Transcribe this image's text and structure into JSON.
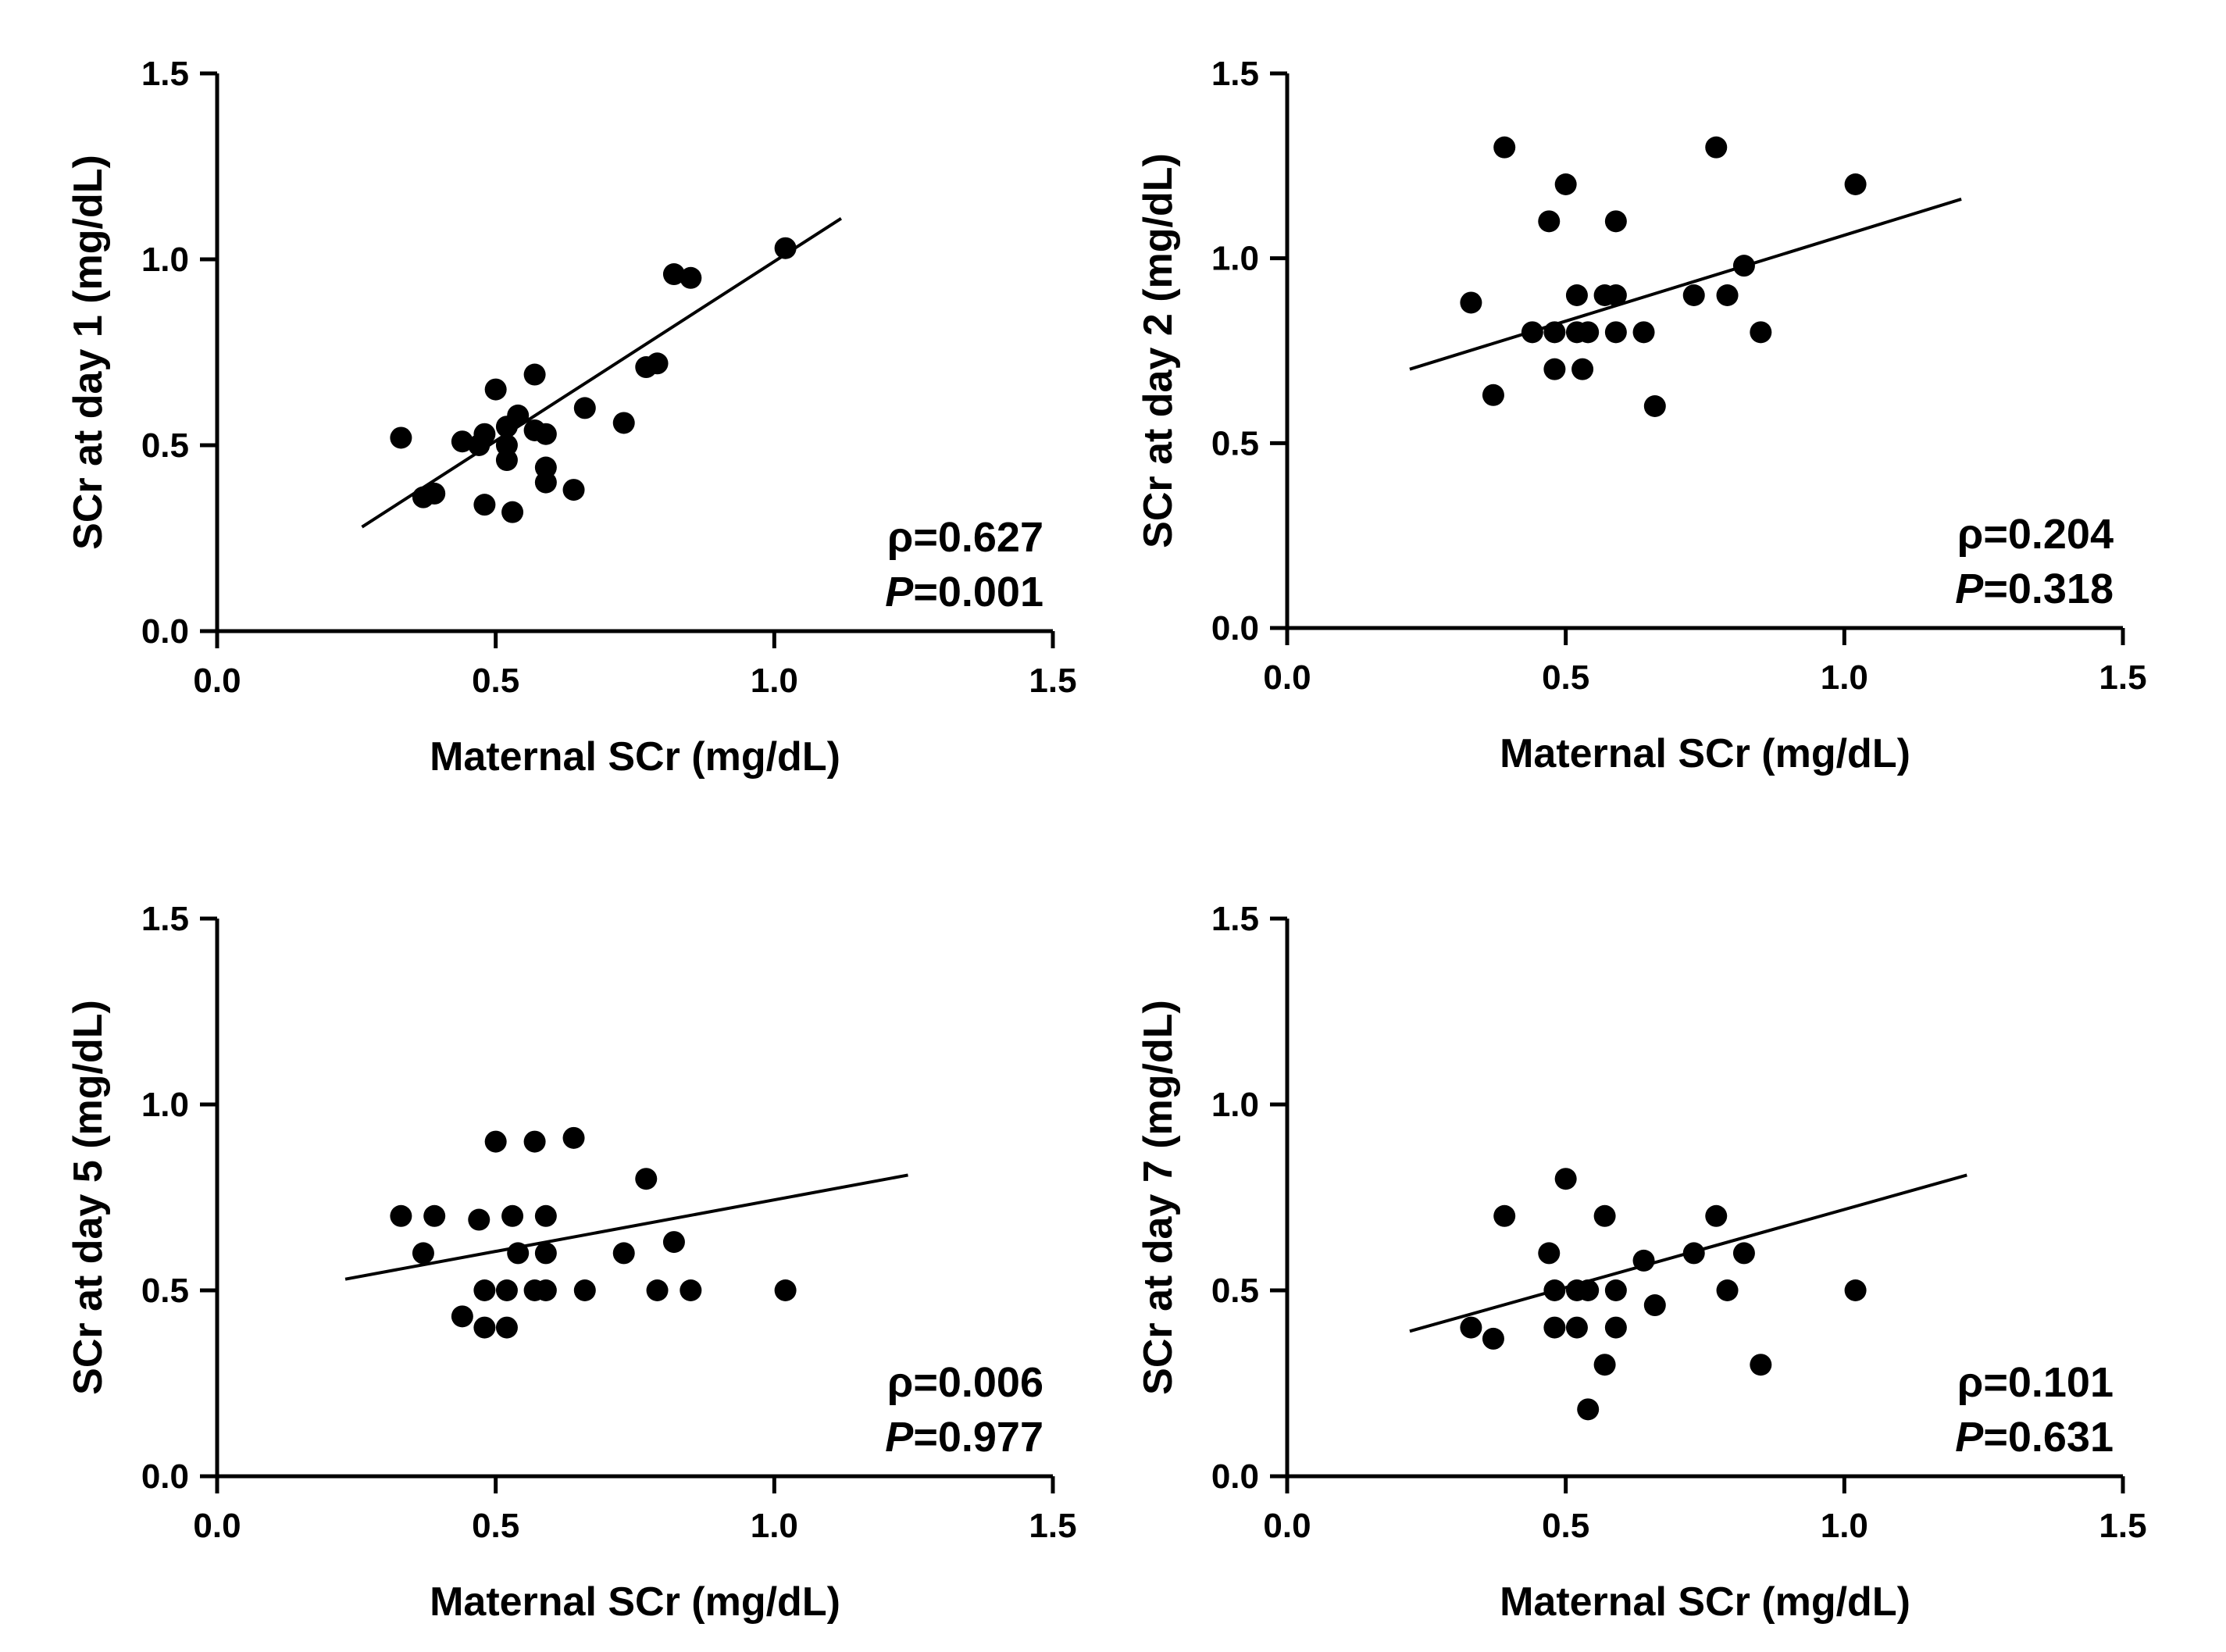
{
  "chart_data": [
    {
      "type": "scatter",
      "xlabel": "Maternal SCr (mg/dL)",
      "ylabel": "SCr at day 1 (mg/dL)",
      "xlim": [
        0,
        1.5
      ],
      "ylim": [
        0,
        1.5
      ],
      "ticks": [
        "0.0",
        "0.5",
        "1.0",
        "1.5"
      ],
      "rho_label": "ρ=0.627",
      "p_label": "P",
      "p_value": "=0.001",
      "fit": {
        "x": [
          0.26,
          1.12
        ],
        "y": [
          0.28,
          1.11
        ]
      },
      "points": [
        {
          "x": 0.33,
          "y": 0.52
        },
        {
          "x": 0.37,
          "y": 0.36
        },
        {
          "x": 0.39,
          "y": 0.37
        },
        {
          "x": 0.44,
          "y": 0.51
        },
        {
          "x": 0.47,
          "y": 0.5
        },
        {
          "x": 0.48,
          "y": 0.53
        },
        {
          "x": 0.48,
          "y": 0.34
        },
        {
          "x": 0.5,
          "y": 0.65
        },
        {
          "x": 0.52,
          "y": 0.5
        },
        {
          "x": 0.52,
          "y": 0.46
        },
        {
          "x": 0.52,
          "y": 0.55
        },
        {
          "x": 0.54,
          "y": 0.58
        },
        {
          "x": 0.53,
          "y": 0.32
        },
        {
          "x": 0.57,
          "y": 0.69
        },
        {
          "x": 0.57,
          "y": 0.54
        },
        {
          "x": 0.59,
          "y": 0.53
        },
        {
          "x": 0.59,
          "y": 0.44
        },
        {
          "x": 0.59,
          "y": 0.4
        },
        {
          "x": 0.64,
          "y": 0.38
        },
        {
          "x": 0.66,
          "y": 0.6
        },
        {
          "x": 0.73,
          "y": 0.56
        },
        {
          "x": 0.77,
          "y": 0.71
        },
        {
          "x": 0.79,
          "y": 0.72
        },
        {
          "x": 0.82,
          "y": 0.96
        },
        {
          "x": 0.85,
          "y": 0.95
        },
        {
          "x": 1.02,
          "y": 1.03
        }
      ]
    },
    {
      "type": "scatter",
      "xlabel": "Maternal SCr (mg/dL)",
      "ylabel": "SCr at day 2 (mg/dL)",
      "xlim": [
        0,
        1.5
      ],
      "ylim": [
        0,
        1.5
      ],
      "ticks": [
        "0.0",
        "0.5",
        "1.0",
        "1.5"
      ],
      "rho_label": "ρ=0.204",
      "p_label": "P",
      "p_value": "=0.318",
      "fit": {
        "x": [
          0.22,
          1.21
        ],
        "y": [
          0.7,
          1.16
        ]
      },
      "points": [
        {
          "x": 0.33,
          "y": 0.88
        },
        {
          "x": 0.37,
          "y": 0.63
        },
        {
          "x": 0.39,
          "y": 1.3
        },
        {
          "x": 0.44,
          "y": 0.8
        },
        {
          "x": 0.47,
          "y": 1.1
        },
        {
          "x": 0.48,
          "y": 0.8
        },
        {
          "x": 0.48,
          "y": 0.7
        },
        {
          "x": 0.5,
          "y": 1.2
        },
        {
          "x": 0.52,
          "y": 0.9
        },
        {
          "x": 0.52,
          "y": 0.8
        },
        {
          "x": 0.53,
          "y": 0.7
        },
        {
          "x": 0.54,
          "y": 0.8
        },
        {
          "x": 0.57,
          "y": 0.9
        },
        {
          "x": 0.59,
          "y": 0.9
        },
        {
          "x": 0.59,
          "y": 1.1
        },
        {
          "x": 0.59,
          "y": 0.8
        },
        {
          "x": 0.64,
          "y": 0.8
        },
        {
          "x": 0.66,
          "y": 0.6
        },
        {
          "x": 0.73,
          "y": 0.9
        },
        {
          "x": 0.77,
          "y": 1.3
        },
        {
          "x": 0.79,
          "y": 0.9
        },
        {
          "x": 0.82,
          "y": 0.98
        },
        {
          "x": 0.85,
          "y": 0.8
        },
        {
          "x": 1.02,
          "y": 1.2
        }
      ]
    },
    {
      "type": "scatter",
      "xlabel": "Maternal SCr (mg/dL)",
      "ylabel": "SCr at day 5 (mg/dL)",
      "xlim": [
        0,
        1.5
      ],
      "ylim": [
        0,
        1.5
      ],
      "ticks": [
        "0.0",
        "0.5",
        "1.0",
        "1.5"
      ],
      "rho_label": "ρ=0.006",
      "p_label": "P",
      "p_value": "=0.977",
      "fit": {
        "x": [
          0.23,
          1.24
        ],
        "y": [
          0.53,
          0.81
        ]
      },
      "points": [
        {
          "x": 0.33,
          "y": 0.7
        },
        {
          "x": 0.37,
          "y": 0.6
        },
        {
          "x": 0.39,
          "y": 0.7
        },
        {
          "x": 0.44,
          "y": 0.43
        },
        {
          "x": 0.47,
          "y": 0.69
        },
        {
          "x": 0.48,
          "y": 0.5
        },
        {
          "x": 0.48,
          "y": 0.4
        },
        {
          "x": 0.5,
          "y": 0.9
        },
        {
          "x": 0.52,
          "y": 0.5
        },
        {
          "x": 0.52,
          "y": 0.4
        },
        {
          "x": 0.53,
          "y": 0.7
        },
        {
          "x": 0.54,
          "y": 0.6
        },
        {
          "x": 0.57,
          "y": 0.9
        },
        {
          "x": 0.57,
          "y": 0.5
        },
        {
          "x": 0.59,
          "y": 0.7
        },
        {
          "x": 0.59,
          "y": 0.6
        },
        {
          "x": 0.59,
          "y": 0.5
        },
        {
          "x": 0.64,
          "y": 0.91
        },
        {
          "x": 0.66,
          "y": 0.5
        },
        {
          "x": 0.73,
          "y": 0.6
        },
        {
          "x": 0.77,
          "y": 0.8
        },
        {
          "x": 0.79,
          "y": 0.5
        },
        {
          "x": 0.82,
          "y": 0.63
        },
        {
          "x": 0.85,
          "y": 0.5
        },
        {
          "x": 1.02,
          "y": 0.5
        }
      ]
    },
    {
      "type": "scatter",
      "xlabel": "Maternal SCr (mg/dL)",
      "ylabel": "SCr at day 7 (mg/dL)",
      "xlim": [
        0,
        1.5
      ],
      "ylim": [
        0,
        1.5
      ],
      "ticks": [
        "0.0",
        "0.5",
        "1.0",
        "1.5"
      ],
      "rho_label": "ρ=0.101",
      "p_label": "P",
      "p_value": "=0.631",
      "fit": {
        "x": [
          0.22,
          1.22
        ],
        "y": [
          0.39,
          0.81
        ]
      },
      "points": [
        {
          "x": 0.33,
          "y": 0.4
        },
        {
          "x": 0.37,
          "y": 0.37
        },
        {
          "x": 0.39,
          "y": 0.7
        },
        {
          "x": 0.47,
          "y": 0.6
        },
        {
          "x": 0.48,
          "y": 0.5
        },
        {
          "x": 0.48,
          "y": 0.4
        },
        {
          "x": 0.5,
          "y": 0.8
        },
        {
          "x": 0.52,
          "y": 0.5
        },
        {
          "x": 0.52,
          "y": 0.4
        },
        {
          "x": 0.54,
          "y": 0.5
        },
        {
          "x": 0.54,
          "y": 0.18
        },
        {
          "x": 0.57,
          "y": 0.7
        },
        {
          "x": 0.57,
          "y": 0.3
        },
        {
          "x": 0.59,
          "y": 0.5
        },
        {
          "x": 0.59,
          "y": 0.4
        },
        {
          "x": 0.64,
          "y": 0.58
        },
        {
          "x": 0.66,
          "y": 0.46
        },
        {
          "x": 0.73,
          "y": 0.6
        },
        {
          "x": 0.77,
          "y": 0.7
        },
        {
          "x": 0.79,
          "y": 0.5
        },
        {
          "x": 0.82,
          "y": 0.6
        },
        {
          "x": 0.85,
          "y": 0.3
        },
        {
          "x": 1.02,
          "y": 0.5
        }
      ]
    }
  ]
}
